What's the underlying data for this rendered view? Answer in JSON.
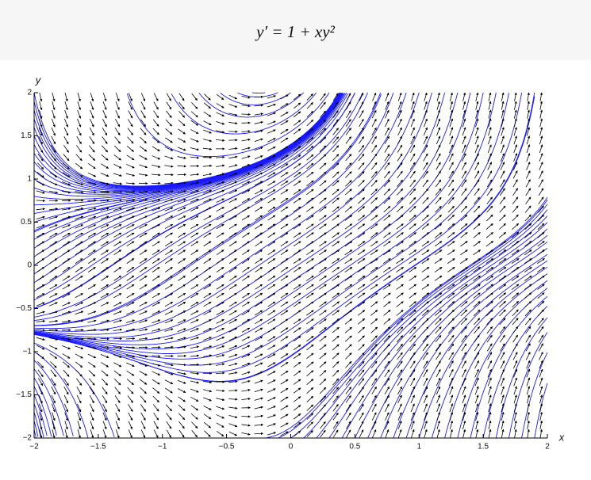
{
  "chart_data": {
    "type": "slope-field",
    "title": "y′ = 1 + xy²",
    "x_label": "x",
    "y_label": "y",
    "xlim": [
      -2,
      2
    ],
    "ylim": [
      -2,
      2
    ],
    "xticks": [
      {
        "value": -2,
        "label": "−2"
      },
      {
        "value": -1.5,
        "label": "−1.5"
      },
      {
        "value": -1,
        "label": "−1"
      },
      {
        "value": -0.5,
        "label": "−0.5"
      },
      0,
      0.5,
      1,
      1.5,
      2
    ],
    "yticks": [
      {
        "value": -2,
        "label": "−2"
      },
      {
        "value": -1.5,
        "label": "−1.5"
      },
      {
        "value": -1,
        "label": "−1"
      },
      {
        "value": -0.5,
        "label": "−0.5"
      },
      0,
      0.5,
      1,
      1.5,
      2
    ],
    "arrow_color": "#000000",
    "curve_color": "#1a1aff"
  }
}
